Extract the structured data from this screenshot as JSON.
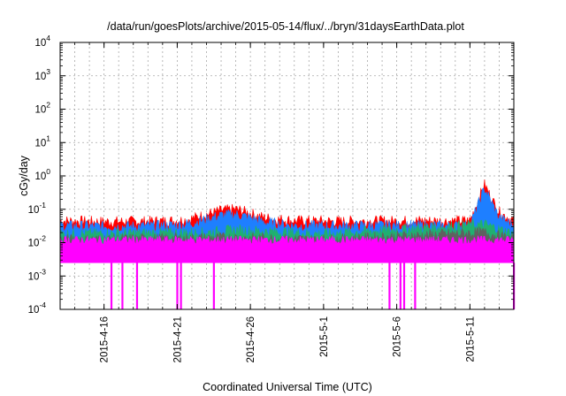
{
  "chart_data": {
    "type": "line",
    "title": "/data/run/goesPlots/archive/2015-05-14/flux/../bryn/31daysEarthData.plot",
    "xlabel": "Coordinated Universal Time (UTC)",
    "ylabel": "cGy/day",
    "yscale": "log",
    "ylim": [
      0.0001,
      10000
    ],
    "xlim": [
      "2015-04-13",
      "2015-05-14"
    ],
    "grid": true,
    "y_ticks": [
      {
        "base": "10",
        "exp": "-4"
      },
      {
        "base": "10",
        "exp": "-3"
      },
      {
        "base": "10",
        "exp": "-2"
      },
      {
        "base": "10",
        "exp": "-1"
      },
      {
        "base": "10",
        "exp": "0"
      },
      {
        "base": "10",
        "exp": "1"
      },
      {
        "base": "10",
        "exp": "2"
      },
      {
        "base": "10",
        "exp": "3"
      },
      {
        "base": "10",
        "exp": "4"
      }
    ],
    "x_ticks": [
      {
        "date": "2015-04-16",
        "label": "2015-4-16"
      },
      {
        "date": "2015-04-21",
        "label": "2015-4-21"
      },
      {
        "date": "2015-04-26",
        "label": "2015-4-26"
      },
      {
        "date": "2015-05-01",
        "label": "2015-5-1"
      },
      {
        "date": "2015-05-06",
        "label": "2015-5-6"
      },
      {
        "date": "2015-05-11",
        "label": "2015-5-11"
      }
    ],
    "series": [
      {
        "color": "#ff0000",
        "x": [
          "2015-04-13",
          "2015-04-16",
          "2015-04-19",
          "2015-04-21",
          "2015-04-22",
          "2015-04-23",
          "2015-04-24",
          "2015-04-25",
          "2015-04-26",
          "2015-04-27",
          "2015-04-29",
          "2015-05-02",
          "2015-05-05",
          "2015-05-08",
          "2015-05-10",
          "2015-05-11",
          "2015-05-12",
          "2015-05-12T12:00",
          "2015-05-13",
          "2015-05-14"
        ],
        "values": [
          0.045,
          0.042,
          0.043,
          0.045,
          0.052,
          0.07,
          0.09,
          0.1,
          0.075,
          0.055,
          0.045,
          0.043,
          0.044,
          0.045,
          0.044,
          0.045,
          0.55,
          0.2,
          0.08,
          0.045
        ]
      },
      {
        "color": "#1e7fff",
        "x": [
          "2015-04-13",
          "2015-04-16",
          "2015-04-19",
          "2015-04-21",
          "2015-04-22",
          "2015-04-23",
          "2015-04-24",
          "2015-04-25",
          "2015-04-26",
          "2015-04-27",
          "2015-04-29",
          "2015-05-02",
          "2015-05-05",
          "2015-05-08",
          "2015-05-10",
          "2015-05-11",
          "2015-05-12",
          "2015-05-12T12:00",
          "2015-05-13",
          "2015-05-14"
        ],
        "values": [
          0.032,
          0.03,
          0.031,
          0.033,
          0.038,
          0.05,
          0.065,
          0.07,
          0.055,
          0.04,
          0.032,
          0.031,
          0.032,
          0.032,
          0.031,
          0.032,
          0.42,
          0.15,
          0.055,
          0.032
        ]
      },
      {
        "color": "#20b070",
        "x": [
          "2015-04-13",
          "2015-04-23",
          "2015-04-25",
          "2015-05-01",
          "2015-05-12",
          "2015-05-13",
          "2015-05-14"
        ],
        "values": [
          0.018,
          0.02,
          0.024,
          0.018,
          0.035,
          0.025,
          0.018
        ]
      },
      {
        "color": "#606060",
        "x": [
          "2015-04-13",
          "2015-04-25",
          "2015-05-01",
          "2015-05-12",
          "2015-05-14"
        ],
        "values": [
          0.012,
          0.014,
          0.012,
          0.02,
          0.012
        ]
      },
      {
        "color": "#ff00ff",
        "x": [
          "2015-04-13",
          "2015-05-14"
        ],
        "values": [
          0.012,
          0.012
        ],
        "baseline": 0.0025,
        "dropouts": [
          {
            "date": "2015-04-16T12:00",
            "value": 0.0001
          },
          {
            "date": "2015-04-17T06:00",
            "value": 0.0001
          },
          {
            "date": "2015-04-18T06:00",
            "value": 0.0001
          },
          {
            "date": "2015-04-21T00:00",
            "value": 0.0001
          },
          {
            "date": "2015-04-21T06:00",
            "value": 0.0001
          },
          {
            "date": "2015-04-23T12:00",
            "value": 0.0001
          },
          {
            "date": "2015-05-05T12:00",
            "value": 0.0001
          },
          {
            "date": "2015-05-06T06:00",
            "value": 0.0001
          },
          {
            "date": "2015-05-06T12:00",
            "value": 0.0001
          },
          {
            "date": "2015-05-07T06:00",
            "value": 0.0001
          },
          {
            "date": "2015-05-14T00:00",
            "value": 0.0001
          }
        ]
      }
    ]
  }
}
